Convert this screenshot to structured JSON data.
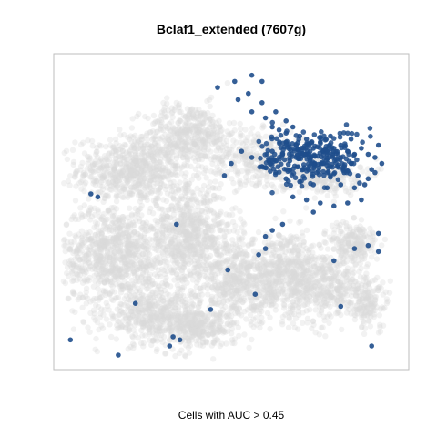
{
  "chart_data": {
    "type": "scatter",
    "title": "Bclaf1_extended (7607g)",
    "xlabel": "Cells with AUC > 0.45",
    "ylabel": "",
    "grid": false,
    "legend": "none",
    "colors": {
      "background_points": "#d9d9d9",
      "highlight_points": "#1f4e8c",
      "frame": "#bebebe"
    },
    "series": [
      {
        "role": "all-cells",
        "description": "",
        "color": "#d9d9d9"
      },
      {
        "role": "cells-above-threshold",
        "color": "#1f4e8c",
        "points": [
          [
            5.5,
            8.9
          ],
          [
            5.2,
            8.7
          ],
          [
            5.9,
            8.6
          ],
          [
            5.6,
            8.3
          ],
          [
            6.0,
            8.1
          ],
          [
            6.2,
            7.8
          ],
          [
            6.4,
            7.7
          ],
          [
            6.8,
            7.8
          ],
          [
            6.6,
            7.6
          ],
          [
            7.0,
            7.5
          ],
          [
            7.2,
            7.4
          ],
          [
            6.9,
            7.2
          ],
          [
            7.4,
            7.1
          ],
          [
            7.6,
            7.3
          ],
          [
            7.8,
            7.0
          ],
          [
            8.0,
            7.1
          ],
          [
            8.2,
            7.2
          ],
          [
            8.4,
            7.0
          ],
          [
            8.6,
            6.9
          ],
          [
            8.8,
            7.1
          ],
          [
            9.0,
            6.9
          ],
          [
            9.2,
            6.8
          ],
          [
            8.5,
            6.6
          ],
          [
            8.1,
            6.5
          ],
          [
            7.7,
            6.6
          ],
          [
            7.3,
            6.7
          ],
          [
            6.9,
            6.8
          ],
          [
            6.5,
            6.9
          ],
          [
            6.2,
            7.0
          ],
          [
            7.1,
            6.4
          ],
          [
            7.5,
            6.3
          ],
          [
            7.9,
            6.2
          ],
          [
            8.3,
            6.3
          ],
          [
            8.7,
            6.2
          ],
          [
            9.1,
            6.4
          ],
          [
            9.0,
            6.1
          ],
          [
            8.9,
            5.9
          ],
          [
            8.6,
            5.8
          ],
          [
            8.2,
            5.9
          ],
          [
            7.8,
            5.8
          ],
          [
            7.4,
            5.9
          ],
          [
            7.0,
            6.0
          ],
          [
            6.6,
            6.1
          ],
          [
            6.3,
            6.3
          ],
          [
            5.9,
            6.5
          ],
          [
            5.6,
            6.8
          ],
          [
            5.3,
            7.0
          ],
          [
            5.0,
            6.6
          ],
          [
            4.8,
            6.2
          ],
          [
            6.8,
            5.5
          ],
          [
            7.2,
            5.4
          ],
          [
            7.6,
            5.3
          ],
          [
            8.0,
            5.2
          ],
          [
            8.4,
            5.3
          ],
          [
            8.8,
            5.4
          ],
          [
            7.4,
            5.0
          ],
          [
            6.2,
            4.4
          ],
          [
            6.0,
            4.2
          ],
          [
            6.5,
            4.6
          ],
          [
            5.8,
            3.6
          ],
          [
            6.0,
            3.8
          ],
          [
            0.9,
            5.6
          ],
          [
            1.1,
            5.5
          ],
          [
            2.2,
            2.0
          ],
          [
            3.4,
            4.6
          ],
          [
            4.9,
            3.1
          ],
          [
            5.7,
            2.3
          ],
          [
            8.0,
            3.4
          ],
          [
            8.6,
            3.8
          ],
          [
            9.0,
            3.9
          ],
          [
            9.3,
            4.3
          ],
          [
            9.3,
            3.7
          ],
          [
            8.2,
            1.9
          ],
          [
            9.1,
            0.6
          ],
          [
            4.4,
            1.8
          ],
          [
            3.5,
            0.8
          ],
          [
            3.3,
            0.9
          ],
          [
            3.2,
            0.6
          ],
          [
            1.7,
            0.3
          ],
          [
            0.3,
            0.8
          ],
          [
            5.6,
            9.5
          ],
          [
            5.1,
            9.3
          ],
          [
            4.6,
            9.1
          ],
          [
            5.9,
            9.3
          ],
          [
            6.3,
            8.3
          ],
          [
            6.6,
            8.0
          ],
          [
            7.9,
            7.5
          ],
          [
            8.5,
            7.4
          ],
          [
            9.3,
            7.2
          ],
          [
            9.4,
            6.6
          ],
          [
            9.2,
            6.3
          ],
          [
            7.8,
            6.9
          ],
          [
            7.2,
            6.9
          ],
          [
            6.6,
            7.3
          ]
        ]
      }
    ]
  }
}
